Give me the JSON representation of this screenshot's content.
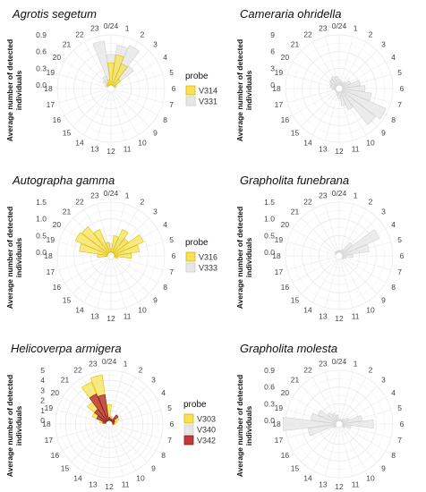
{
  "hour_labels": [
    "0/24",
    "1",
    "2",
    "3",
    "4",
    "5",
    "6",
    "7",
    "8",
    "9",
    "10",
    "11",
    "12",
    "13",
    "14",
    "15",
    "16",
    "17",
    "18",
    "19",
    "20",
    "21",
    "22",
    "23"
  ],
  "colors": {
    "V314": "#f7e15a",
    "V331": "#e6e6e6",
    "V316": "#f7e15a",
    "V333": "#e6e6e6",
    "V303": "#f7e15a",
    "V340": "#e6e6e6",
    "V342": "#c0393b"
  },
  "chart_data": [
    {
      "type": "polar-bar",
      "title": "Agrotis segetum",
      "ylabel": "Average number of detected individuals",
      "rlim": [
        0,
        0.9
      ],
      "rticks": [
        "0.0",
        "0.3",
        "0.6",
        "0.9"
      ],
      "rtick_values": [
        0,
        0.3,
        0.6,
        0.9
      ],
      "legend": {
        "title": "probe",
        "entries": [
          "V314",
          "V331"
        ]
      },
      "series": [
        {
          "name": "V331",
          "color": "#e6e6e6",
          "values": [
            0.55,
            0.72,
            0.78,
            0.45,
            0.05,
            0.02,
            0,
            0,
            0,
            0,
            0,
            0,
            0,
            0,
            0,
            0,
            0,
            0,
            0,
            0,
            0.05,
            0.12,
            0.18,
            0.8
          ]
        },
        {
          "name": "V314",
          "color": "#f7e15a",
          "values": [
            0.4,
            0.55,
            0.42,
            0.15,
            0.03,
            0,
            0,
            0,
            0,
            0,
            0,
            0,
            0,
            0,
            0,
            0,
            0,
            0,
            0,
            0,
            0,
            0.03,
            0.05,
            0.1
          ]
        }
      ]
    },
    {
      "type": "polar-bar",
      "title": "Cameraria ohridella",
      "ylabel": "Average number of detected individuals",
      "rlim": [
        0,
        9
      ],
      "rticks": [
        "0",
        "3",
        "6",
        "9"
      ],
      "rtick_values": [
        0,
        3,
        6,
        9
      ],
      "legend": null,
      "series": [
        {
          "name": "V331",
          "color": "#e6e6e6",
          "values": [
            1.0,
            0.7,
            0.5,
            0.9,
            1.6,
            3.2,
            4.0,
            5.2,
            8.5,
            7.6,
            3.5,
            2.5,
            1.2,
            0.6,
            0.2,
            0.1,
            0.1,
            0.2,
            0.6,
            1.0,
            1.2,
            1.5,
            1.8,
            1.6
          ]
        }
      ]
    },
    {
      "type": "polar-bar",
      "title": "Autographa gamma",
      "ylabel": "Average number of detected individuals",
      "rlim": [
        0,
        1.5
      ],
      "rticks": [
        "0.0",
        "0.5",
        "1.0",
        "1.5"
      ],
      "rtick_values": [
        0,
        0.5,
        1.0,
        1.5
      ],
      "legend": {
        "title": "probe",
        "entries": [
          "V316",
          "V333"
        ]
      },
      "series": [
        {
          "name": "V333",
          "color": "#e6e6e6",
          "values": [
            0.25,
            0.35,
            0.45,
            0.5,
            0.35,
            0.3,
            0.1,
            0.05,
            0,
            0,
            0,
            0,
            0,
            0,
            0,
            0,
            0,
            0,
            0.05,
            0.15,
            0.3,
            0.35,
            0.35,
            0.3
          ]
        },
        {
          "name": "V316",
          "color": "#f7e15a",
          "values": [
            0.1,
            0.5,
            0.75,
            0.55,
            0.95,
            0.75,
            0.5,
            0.1,
            0,
            0,
            0,
            0,
            0,
            0,
            0,
            0,
            0,
            0,
            0.3,
            0.85,
            1.05,
            1.0,
            0.75,
            0.3
          ]
        }
      ]
    },
    {
      "type": "polar-bar",
      "title": "Grapholita funebrana",
      "ylabel": "Average number of detected individuals",
      "rlim": [
        0,
        1.5
      ],
      "rticks": [
        "0.0",
        "0.5",
        "1.0",
        "1.5"
      ],
      "rtick_values": [
        0,
        0.5,
        1.0,
        1.5
      ],
      "legend": null,
      "series": [
        {
          "name": "V333",
          "color": "#e6e6e6",
          "values": [
            0.05,
            0.05,
            0.1,
            0.4,
            1.2,
            0.8,
            0.3,
            0.1,
            0.05,
            0,
            0,
            0,
            0,
            0,
            0,
            0,
            0,
            0,
            0,
            0,
            0.02,
            0.05,
            0.05,
            0.05
          ]
        }
      ]
    },
    {
      "type": "polar-bar",
      "title": "Helicoverpa armigera",
      "ylabel": "Average number of detected individuals",
      "rlim": [
        0,
        5
      ],
      "rticks": [
        "0",
        "1",
        "2",
        "3",
        "4",
        "5"
      ],
      "rtick_values": [
        0,
        1,
        2,
        3,
        4,
        5
      ],
      "legend": {
        "title": "probe",
        "entries": [
          "V303",
          "V340",
          "V342"
        ]
      },
      "series": [
        {
          "name": "V303",
          "color": "#f7e15a",
          "values": [
            1.6,
            0.4,
            0.3,
            0.5,
            0.7,
            0.4,
            0.2,
            0,
            0,
            0,
            0,
            0,
            0,
            0,
            0,
            0,
            0,
            0,
            0,
            0.6,
            1.5,
            2.4,
            4.2,
            4.6
          ]
        },
        {
          "name": "V340",
          "color": "#e6e6e6",
          "values": [
            0,
            0,
            0,
            0,
            0,
            0,
            0,
            0,
            0,
            0,
            0,
            0,
            0,
            0,
            0,
            0,
            0,
            0,
            0,
            0,
            0,
            0,
            0,
            0
          ]
        },
        {
          "name": "V342",
          "color": "#c0393b",
          "values": [
            0.3,
            0.2,
            0.15,
            0.8,
            0.25,
            0.15,
            0.05,
            0,
            0,
            0,
            0,
            0,
            0,
            0,
            0,
            0,
            0,
            0,
            0,
            0.3,
            1.0,
            1.5,
            2.9,
            2.6
          ]
        }
      ]
    },
    {
      "type": "polar-bar",
      "title": "Grapholita molesta",
      "ylabel": "Average number of detected individuals",
      "rlim": [
        0,
        0.9
      ],
      "rticks": [
        "0.0",
        "0.3",
        "0.6",
        "0.9"
      ],
      "rtick_values": [
        0,
        0.3,
        0.6,
        0.9
      ],
      "legend": null,
      "series": [
        {
          "name": "V340",
          "color": "#e6e6e6",
          "values": [
            0.02,
            0.02,
            0.02,
            0.05,
            0.12,
            0.35,
            0.55,
            0.15,
            0.05,
            0,
            0,
            0,
            0,
            0,
            0,
            0,
            0.05,
            0.5,
            1.0,
            0.45,
            0.35,
            0.2,
            0.15,
            0.1
          ]
        }
      ]
    }
  ]
}
